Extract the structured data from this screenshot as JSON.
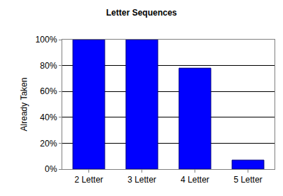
{
  "chart_data": {
    "type": "bar",
    "title": "Letter Sequences",
    "y_label": "Already Taken",
    "categories": [
      "2 Letter",
      "3 Letter",
      "4 Letter",
      "5 Letter"
    ],
    "values": [
      100,
      100,
      78,
      7
    ],
    "color": "#0000ff",
    "ylim": [
      0,
      100
    ],
    "yticks": [
      {
        "value": 0,
        "label": "0%"
      },
      {
        "value": 20,
        "label": "20%"
      },
      {
        "value": 40,
        "label": "40%"
      },
      {
        "value": 60,
        "label": "60%"
      },
      {
        "value": 80,
        "label": "80%"
      },
      {
        "value": 100,
        "label": "100%"
      }
    ],
    "grid": true
  }
}
